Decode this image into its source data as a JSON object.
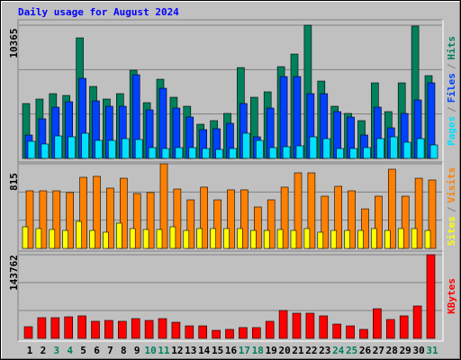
{
  "chart_data": [
    {
      "type": "bar",
      "title": "Daily usage for August 2024",
      "categories": [
        "1",
        "2",
        "3",
        "4",
        "5",
        "6",
        "7",
        "8",
        "9",
        "10",
        "11",
        "12",
        "13",
        "14",
        "15",
        "16",
        "17",
        "18",
        "19",
        "20",
        "21",
        "22",
        "23",
        "24",
        "25",
        "26",
        "27",
        "28",
        "29",
        "30",
        "31"
      ],
      "category_colors": [
        "#000000",
        "#000000",
        "#00805c",
        "#00805c",
        "#000000",
        "#000000",
        "#000000",
        "#000000",
        "#000000",
        "#00805c",
        "#00805c",
        "#000000",
        "#000000",
        "#000000",
        "#000000",
        "#000000",
        "#00805c",
        "#00805c",
        "#000000",
        "#000000",
        "#000000",
        "#000000",
        "#000000",
        "#00805c",
        "#00805c",
        "#000000",
        "#000000",
        "#000000",
        "#000000",
        "#000000",
        "#00805c"
      ],
      "legend_separator": "/",
      "series": [
        {
          "name": "Hits",
          "color": "#00805c",
          "values": [
            4270,
            4620,
            5040,
            4900,
            9380,
            5600,
            4620,
            5040,
            6860,
            4340,
            6160,
            4760,
            4060,
            2660,
            2940,
            3500,
            7070,
            4760,
            5180,
            7140,
            8120,
            10365,
            6020,
            4060,
            3500,
            2940,
            5880,
            3640,
            5880,
            10300,
            6440
          ]
        },
        {
          "name": "Files",
          "color": "#0040ff",
          "values": [
            1820,
            3080,
            3990,
            4410,
            6230,
            4480,
            4060,
            4060,
            6510,
            3780,
            5460,
            3920,
            3220,
            2240,
            2310,
            2730,
            4270,
            1680,
            3920,
            6370,
            6370,
            5040,
            5040,
            3640,
            3220,
            1820,
            3990,
            2380,
            3500,
            4550,
            5880
          ]
        },
        {
          "name": "Pages",
          "color": "#00e0ff",
          "values": [
            1330,
            1120,
            1750,
            1680,
            1960,
            1400,
            1400,
            1540,
            1470,
            840,
            770,
            840,
            840,
            770,
            700,
            770,
            1960,
            1400,
            840,
            910,
            980,
            1680,
            1540,
            770,
            770,
            840,
            1540,
            1680,
            1260,
            1540,
            1050
          ]
        }
      ],
      "ylim": [
        0,
        10365
      ],
      "yticks": [
        10365
      ]
    },
    {
      "type": "bar",
      "legend_separator": "/",
      "series": [
        {
          "name": "Visits",
          "color": "#ff8000",
          "values": [
            555,
            555,
            555,
            538,
            685,
            694,
            581,
            676,
            529,
            538,
            815,
            572,
            468,
            590,
            468,
            564,
            564,
            399,
            468,
            590,
            728,
            728,
            503,
            598,
            555,
            381,
            503,
            763,
            503,
            676,
            659
          ]
        },
        {
          "name": "Sites",
          "color": "#ffff00",
          "values": [
            208,
            191,
            182,
            173,
            260,
            173,
            156,
            243,
            191,
            182,
            182,
            208,
            173,
            191,
            191,
            191,
            191,
            173,
            173,
            182,
            173,
            191,
            156,
            173,
            173,
            173,
            191,
            173,
            191,
            191,
            173
          ]
        }
      ],
      "ylim": [
        0,
        815
      ],
      "yticks": [
        815
      ]
    },
    {
      "type": "bar",
      "series": [
        {
          "name": "KBytes",
          "color": "#ff0000",
          "values": [
            20100,
            35600,
            35600,
            37100,
            38700,
            29400,
            30900,
            29400,
            34000,
            30900,
            34000,
            27800,
            21600,
            21600,
            13900,
            15500,
            18600,
            18600,
            29400,
            47900,
            43300,
            43300,
            38700,
            24700,
            21600,
            15500,
            51000,
            32500,
            38700,
            55700,
            143762
          ]
        }
      ],
      "ylim": [
        0,
        143762
      ],
      "yticks": [
        143762
      ]
    }
  ]
}
